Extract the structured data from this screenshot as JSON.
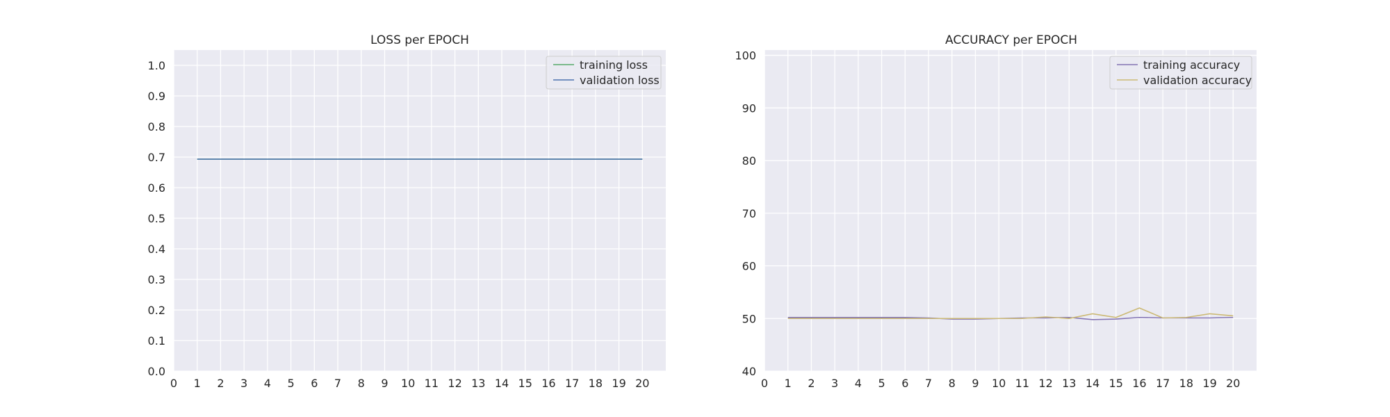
{
  "chart_data": [
    {
      "type": "line",
      "title": "LOSS per EPOCH",
      "xlabel": "",
      "ylabel": "",
      "x": [
        1,
        2,
        3,
        4,
        5,
        6,
        7,
        8,
        9,
        10,
        11,
        12,
        13,
        14,
        15,
        16,
        17,
        18,
        19,
        20
      ],
      "xticks": [
        0,
        1,
        2,
        3,
        4,
        5,
        6,
        7,
        8,
        9,
        10,
        11,
        12,
        13,
        14,
        15,
        16,
        17,
        18,
        19,
        20
      ],
      "xlim": [
        0,
        21
      ],
      "ylim": [
        0,
        1.05
      ],
      "yticks": [
        0.0,
        0.1,
        0.2,
        0.3,
        0.4,
        0.5,
        0.6,
        0.7,
        0.8,
        0.9,
        1.0
      ],
      "ytick_decimals": 1,
      "grid": true,
      "legend_position": "top-right",
      "series": [
        {
          "name": "training loss",
          "color": "#55a868",
          "values": [
            0.6932,
            0.6932,
            0.6932,
            0.6932,
            0.6932,
            0.6932,
            0.6932,
            0.6932,
            0.6932,
            0.6932,
            0.6932,
            0.6932,
            0.6932,
            0.6932,
            0.6932,
            0.6932,
            0.6932,
            0.6932,
            0.6932,
            0.6932
          ]
        },
        {
          "name": "validation loss",
          "color": "#4c72b0",
          "values": [
            0.6932,
            0.6932,
            0.6932,
            0.6932,
            0.6932,
            0.6932,
            0.6932,
            0.6932,
            0.6932,
            0.6932,
            0.6932,
            0.6932,
            0.6932,
            0.6932,
            0.6932,
            0.6932,
            0.6932,
            0.6932,
            0.6932,
            0.6932
          ]
        }
      ]
    },
    {
      "type": "line",
      "title": "ACCURACY per EPOCH",
      "xlabel": "",
      "ylabel": "",
      "x": [
        1,
        2,
        3,
        4,
        5,
        6,
        7,
        8,
        9,
        10,
        11,
        12,
        13,
        14,
        15,
        16,
        17,
        18,
        19,
        20
      ],
      "xticks": [
        0,
        1,
        2,
        3,
        4,
        5,
        6,
        7,
        8,
        9,
        10,
        11,
        12,
        13,
        14,
        15,
        16,
        17,
        18,
        19,
        20
      ],
      "xlim": [
        0,
        21
      ],
      "ylim": [
        40,
        101
      ],
      "yticks": [
        40,
        50,
        60,
        70,
        80,
        90,
        100
      ],
      "ytick_decimals": 0,
      "grid": true,
      "legend_position": "top-right",
      "series": [
        {
          "name": "training accuracy",
          "color": "#8172b2",
          "values": [
            50.2,
            50.2,
            50.2,
            50.2,
            50.2,
            50.2,
            50.1,
            49.9,
            49.9,
            50.0,
            50.1,
            50.1,
            50.2,
            49.8,
            49.9,
            50.2,
            50.1,
            50.1,
            50.1,
            50.2
          ]
        },
        {
          "name": "validation accuracy",
          "color": "#ccb974",
          "values": [
            50.0,
            50.0,
            50.0,
            50.0,
            50.0,
            50.0,
            50.0,
            50.0,
            50.0,
            50.0,
            50.0,
            50.3,
            50.0,
            50.9,
            50.2,
            52.0,
            50.1,
            50.2,
            50.9,
            50.5
          ]
        }
      ]
    }
  ]
}
